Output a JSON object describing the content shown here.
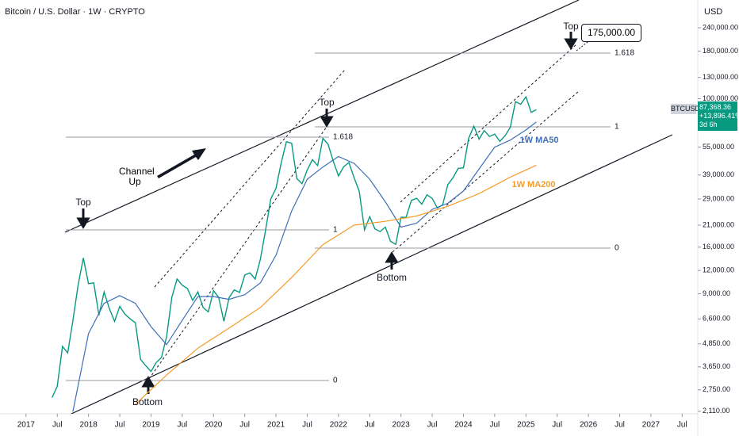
{
  "chart_data": {
    "type": "line",
    "title": "Bitcoin / U.S. Dollar · 1W · CRYPTO",
    "y_axis_label": "USD",
    "log_scale": true,
    "xlim": [
      "2016-08",
      "2027-10"
    ],
    "ylim": [
      2046,
      338000
    ],
    "xticks": [
      {
        "value": "2017-01",
        "label": "2017"
      },
      {
        "value": "2017-07",
        "label": "Jul"
      },
      {
        "value": "2018-01",
        "label": "2018"
      },
      {
        "value": "2018-07",
        "label": "Jul"
      },
      {
        "value": "2019-01",
        "label": "2019"
      },
      {
        "value": "2019-07",
        "label": "Jul"
      },
      {
        "value": "2020-01",
        "label": "2020"
      },
      {
        "value": "2020-07",
        "label": "Jul"
      },
      {
        "value": "2021-01",
        "label": "2021"
      },
      {
        "value": "2021-07",
        "label": "Jul"
      },
      {
        "value": "2022-01",
        "label": "2022"
      },
      {
        "value": "2022-07",
        "label": "Jul"
      },
      {
        "value": "2023-01",
        "label": "2023"
      },
      {
        "value": "2023-07",
        "label": "Jul"
      },
      {
        "value": "2024-01",
        "label": "2024"
      },
      {
        "value": "2024-07",
        "label": "Jul"
      },
      {
        "value": "2025-01",
        "label": "2025"
      },
      {
        "value": "2025-07",
        "label": "Jul"
      },
      {
        "value": "2026-01",
        "label": "2026"
      },
      {
        "value": "2026-07",
        "label": "Jul"
      },
      {
        "value": "2027-01",
        "label": "2027"
      },
      {
        "value": "2027-07",
        "label": "Jul"
      }
    ],
    "yticks": [
      {
        "value": 2110,
        "label": "2,110.00"
      },
      {
        "value": 2750,
        "label": "2,750.00"
      },
      {
        "value": 3650,
        "label": "3,650.00"
      },
      {
        "value": 4850,
        "label": "4,850.00"
      },
      {
        "value": 6600,
        "label": "6,600.00"
      },
      {
        "value": 9000,
        "label": "9,000.00"
      },
      {
        "value": 12000,
        "label": "12,000.00"
      },
      {
        "value": 16000,
        "label": "16,000.00"
      },
      {
        "value": 21000,
        "label": "21,000.00"
      },
      {
        "value": 29000,
        "label": "29,000.00"
      },
      {
        "value": 39000,
        "label": "39,000.00"
      },
      {
        "value": 55000,
        "label": "55,000.00"
      },
      {
        "value": 100000,
        "label": "100,000.00"
      },
      {
        "value": 130000,
        "label": "130,000.00"
      },
      {
        "value": 180000,
        "label": "180,000.00"
      },
      {
        "value": 240000,
        "label": "240,000.00"
      }
    ],
    "series": [
      {
        "name": "BTCUSD",
        "color": "#089981",
        "x": [
          "2017-06",
          "2017-07",
          "2017-08",
          "2017-09",
          "2017-10",
          "2017-11",
          "2017-12",
          "2018-01",
          "2018-02",
          "2018-03",
          "2018-04",
          "2018-05",
          "2018-06",
          "2018-07",
          "2018-08",
          "2018-09",
          "2018-10",
          "2018-11",
          "2018-12",
          "2019-01",
          "2019-02",
          "2019-03",
          "2019-04",
          "2019-05",
          "2019-06",
          "2019-07",
          "2019-08",
          "2019-09",
          "2019-10",
          "2019-11",
          "2019-12",
          "2020-01",
          "2020-02",
          "2020-03",
          "2020-04",
          "2020-05",
          "2020-06",
          "2020-07",
          "2020-08",
          "2020-09",
          "2020-10",
          "2020-11",
          "2020-12",
          "2021-01",
          "2021-02",
          "2021-03",
          "2021-04",
          "2021-05",
          "2021-06",
          "2021-07",
          "2021-08",
          "2021-09",
          "2021-10",
          "2021-11",
          "2021-12",
          "2022-01",
          "2022-02",
          "2022-03",
          "2022-04",
          "2022-05",
          "2022-06",
          "2022-07",
          "2022-08",
          "2022-09",
          "2022-10",
          "2022-11",
          "2022-12",
          "2023-01",
          "2023-02",
          "2023-03",
          "2023-04",
          "2023-05",
          "2023-06",
          "2023-07",
          "2023-08",
          "2023-09",
          "2023-10",
          "2023-11",
          "2023-12",
          "2024-01",
          "2024-02",
          "2024-03",
          "2024-04",
          "2024-05",
          "2024-06",
          "2024-07",
          "2024-08",
          "2024-09",
          "2024-10",
          "2024-11",
          "2024-12",
          "2025-01",
          "2025-02",
          "2025-03"
        ],
        "values": [
          2500,
          2870,
          4700,
          4340,
          6450,
          10000,
          14000,
          10200,
          10300,
          6900,
          9200,
          7500,
          6400,
          7700,
          7000,
          6600,
          6300,
          4000,
          3700,
          3450,
          3850,
          4100,
          5300,
          8600,
          10800,
          10000,
          9600,
          8300,
          9200,
          7600,
          7200,
          9350,
          8600,
          6400,
          8600,
          9450,
          9150,
          11350,
          11650,
          10800,
          13800,
          19700,
          29000,
          33100,
          45200,
          58800,
          57700,
          37300,
          35000,
          41500,
          47100,
          43800,
          61300,
          57000,
          46300,
          38500,
          43200,
          45500,
          37700,
          31800,
          19800,
          23300,
          20050,
          19400,
          20500,
          17200,
          16550,
          23100,
          23150,
          28500,
          29250,
          27200,
          30500,
          29200,
          25950,
          26950,
          34650,
          37700,
          42300,
          42600,
          61200,
          71300,
          60700,
          67500,
          62700,
          64600,
          59000,
          63300,
          70300,
          96400,
          93400,
          102400,
          84400,
          87368.36
        ]
      },
      {
        "name": "1W MA50",
        "color": "#3d6fb6",
        "x": [
          "2017-10",
          "2018-01",
          "2018-04",
          "2018-07",
          "2018-10",
          "2019-01",
          "2019-04",
          "2019-07",
          "2019-10",
          "2020-01",
          "2020-04",
          "2020-07",
          "2020-10",
          "2021-01",
          "2021-04",
          "2021-07",
          "2021-10",
          "2022-01",
          "2022-04",
          "2022-07",
          "2022-10",
          "2023-01",
          "2023-04",
          "2023-07",
          "2023-10",
          "2024-01",
          "2024-04",
          "2024-07",
          "2024-10",
          "2025-01",
          "2025-03"
        ],
        "values": [
          2100,
          5500,
          8000,
          8800,
          8000,
          6000,
          4800,
          6500,
          8700,
          8700,
          8400,
          8900,
          10300,
          14500,
          25000,
          37000,
          43000,
          49000,
          45000,
          37000,
          28000,
          20500,
          21500,
          25500,
          27500,
          32000,
          42000,
          55000,
          60000,
          68000,
          75000
        ]
      },
      {
        "name": "1W MA200",
        "color": "#f39c29",
        "x": [
          "2018-10",
          "2019-04",
          "2019-10",
          "2020-04",
          "2020-10",
          "2021-04",
          "2021-10",
          "2022-04",
          "2022-10",
          "2023-04",
          "2023-10",
          "2024-04",
          "2024-10",
          "2025-03"
        ],
        "values": [
          2300,
          3300,
          4600,
          5900,
          7600,
          11000,
          16500,
          21000,
          22000,
          23500,
          26500,
          31000,
          38000,
          44000
        ]
      }
    ],
    "price_label": {
      "price": "87,368.36",
      "change": "+13,896.41%",
      "countdown": "3d 6h"
    },
    "annotations": [
      "Top",
      "Top",
      "Top",
      "175,000.00",
      "Bottom",
      "Bottom",
      "Channel Up"
    ],
    "fib_levels": [
      "1.618",
      "1",
      "0",
      "1.618",
      "1",
      "0"
    ]
  }
}
